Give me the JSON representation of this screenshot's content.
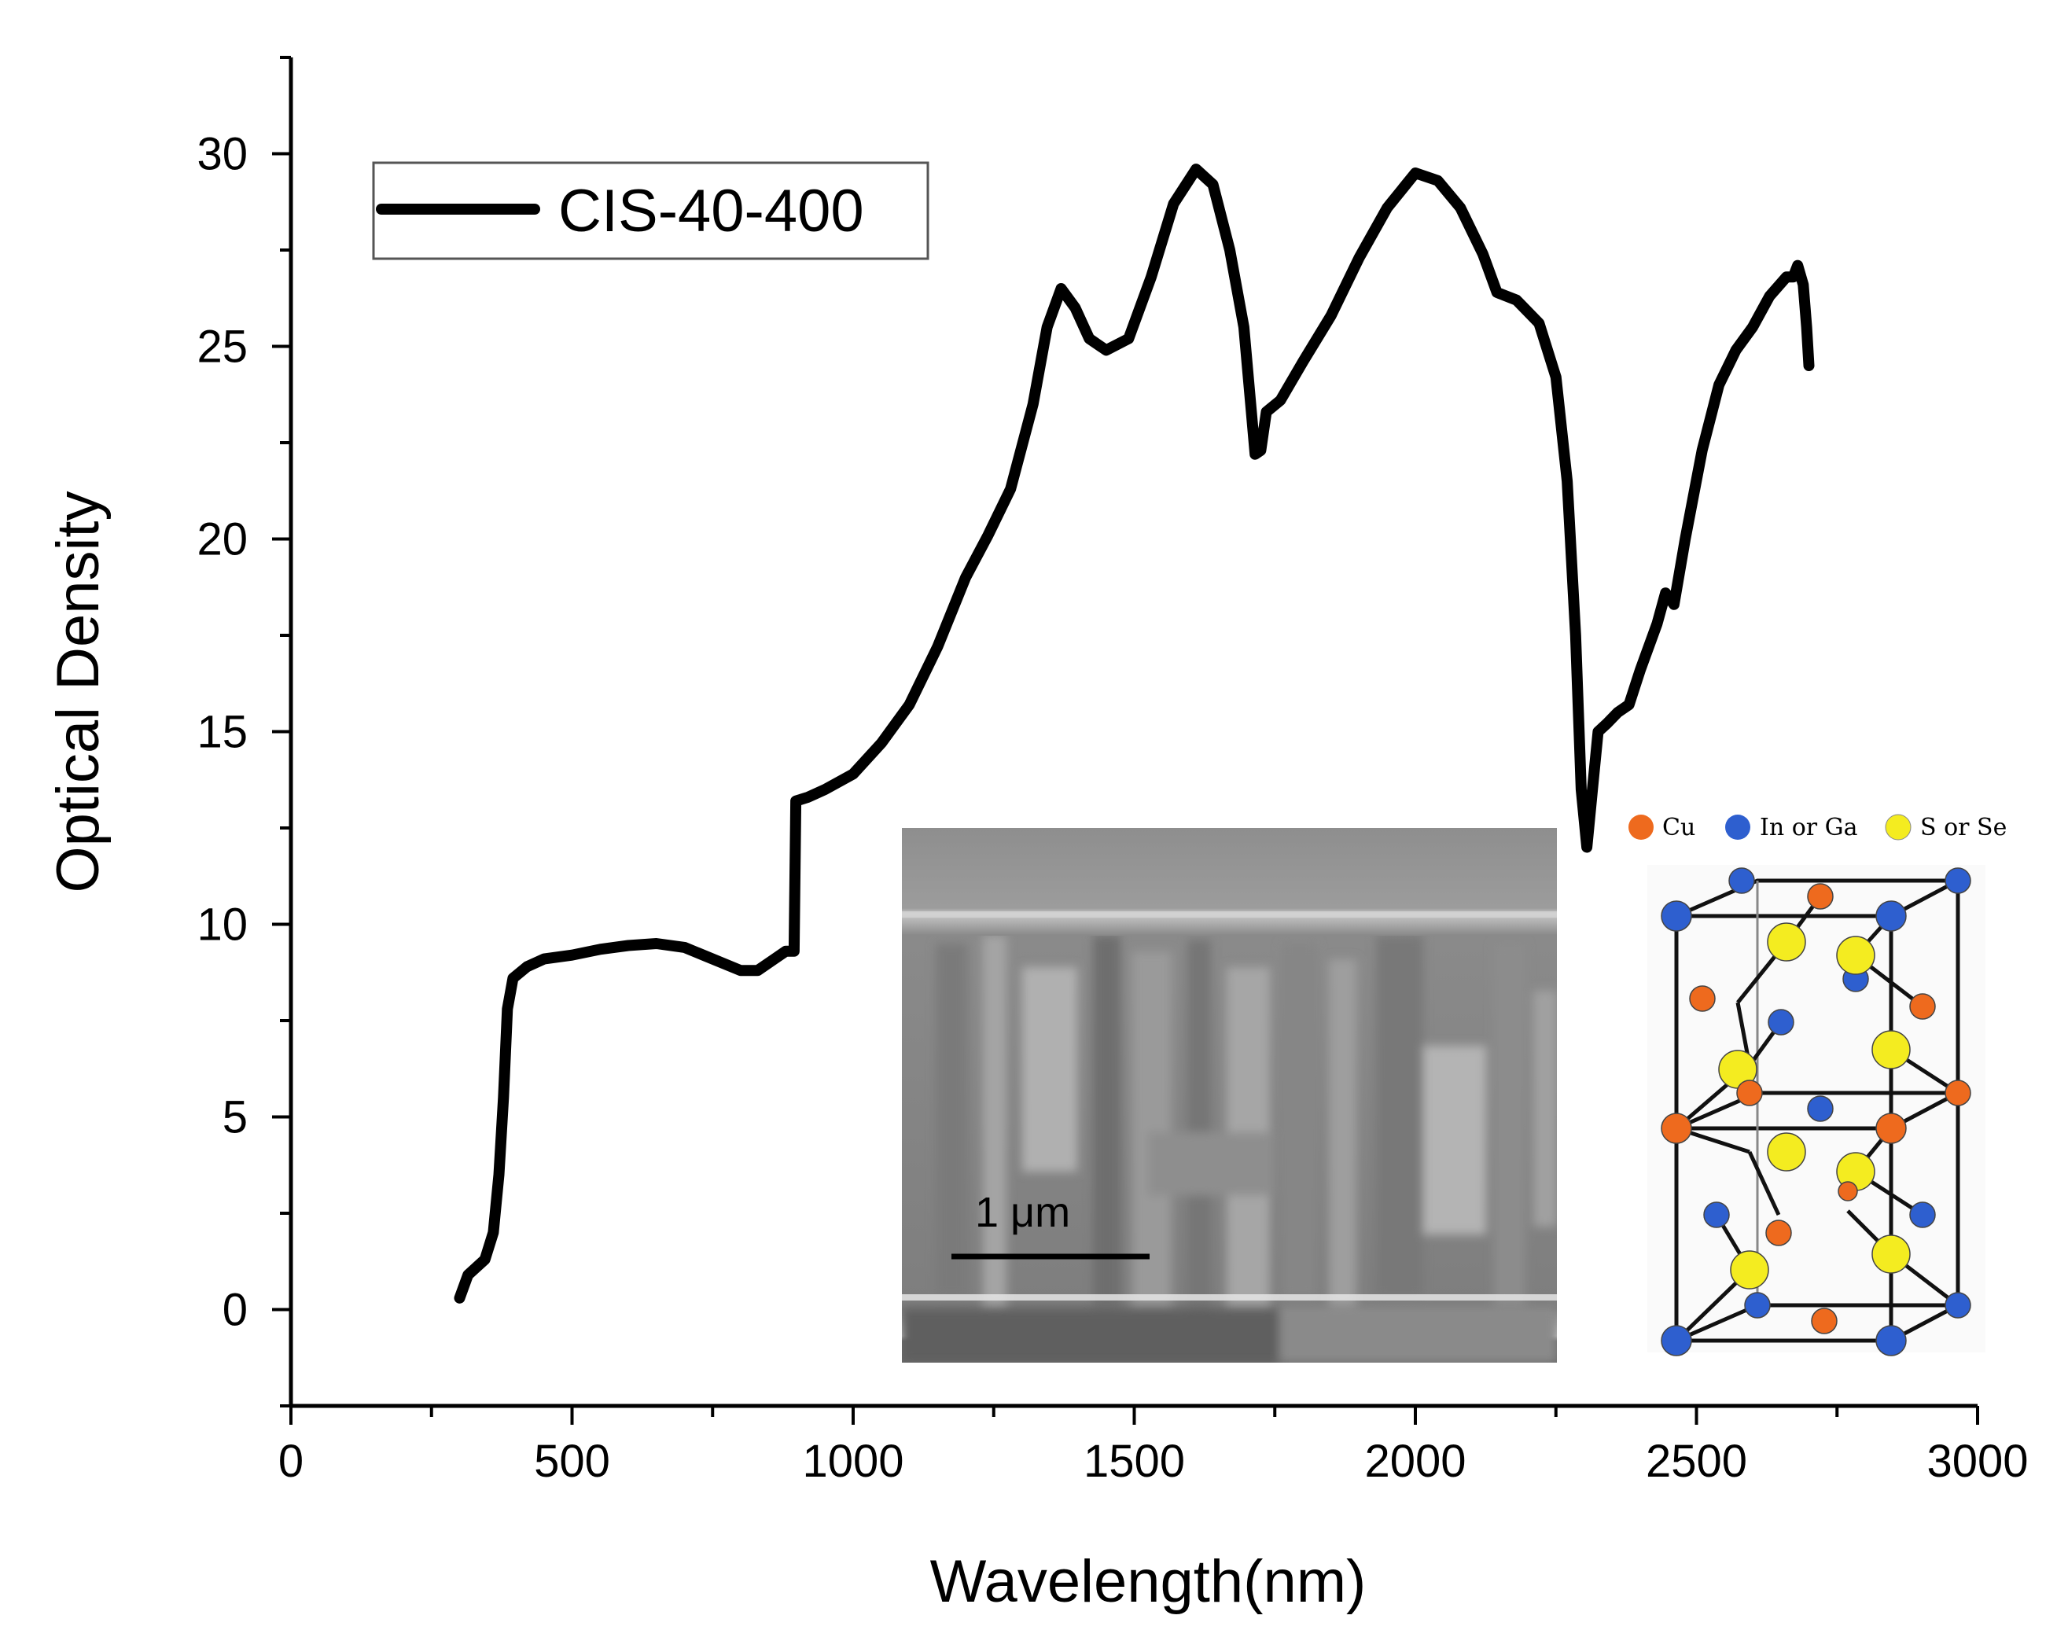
{
  "chart_data": {
    "type": "line",
    "title": "",
    "xlabel": "Wavelength(nm)",
    "ylabel": "Optical Density",
    "xlim": [
      0,
      3000
    ],
    "ylim": [
      -2.5,
      32.5
    ],
    "xticks": [
      0,
      500,
      1000,
      1500,
      2000,
      2500,
      3000
    ],
    "xtick_labels": [
      "0",
      "500",
      "1000",
      "1500",
      "2000",
      "2500",
      "3000"
    ],
    "yticks": [
      0,
      5,
      10,
      15,
      20,
      25,
      30
    ],
    "ytick_labels": [
      "0",
      "5",
      "10",
      "15",
      "20",
      "25",
      "30"
    ],
    "grid": false,
    "legend": {
      "position": "top-left",
      "entries": [
        "CIS-40-400"
      ]
    },
    "series": [
      {
        "name": "CIS-40-400",
        "color": "#000000",
        "points": [
          [
            300,
            0.3
          ],
          [
            315,
            0.9
          ],
          [
            330,
            1.1
          ],
          [
            345,
            1.3
          ],
          [
            360,
            2.0
          ],
          [
            370,
            3.5
          ],
          [
            378,
            5.5
          ],
          [
            385,
            7.8
          ],
          [
            395,
            8.6
          ],
          [
            420,
            8.9
          ],
          [
            450,
            9.1
          ],
          [
            500,
            9.2
          ],
          [
            550,
            9.35
          ],
          [
            600,
            9.45
          ],
          [
            650,
            9.5
          ],
          [
            700,
            9.4
          ],
          [
            750,
            9.1
          ],
          [
            800,
            8.8
          ],
          [
            830,
            8.8
          ],
          [
            860,
            9.1
          ],
          [
            880,
            9.3
          ],
          [
            895,
            9.3
          ],
          [
            898,
            13.2
          ],
          [
            920,
            13.3
          ],
          [
            950,
            13.5
          ],
          [
            1000,
            13.9
          ],
          [
            1050,
            14.7
          ],
          [
            1100,
            15.7
          ],
          [
            1150,
            17.2
          ],
          [
            1200,
            19.0
          ],
          [
            1240,
            20.1
          ],
          [
            1280,
            21.3
          ],
          [
            1320,
            23.5
          ],
          [
            1345,
            25.5
          ],
          [
            1370,
            26.5
          ],
          [
            1395,
            26.0
          ],
          [
            1420,
            25.2
          ],
          [
            1450,
            24.9
          ],
          [
            1490,
            25.2
          ],
          [
            1530,
            26.8
          ],
          [
            1570,
            28.7
          ],
          [
            1610,
            29.6
          ],
          [
            1640,
            29.2
          ],
          [
            1670,
            27.5
          ],
          [
            1695,
            25.5
          ],
          [
            1715,
            22.2
          ],
          [
            1725,
            22.3
          ],
          [
            1735,
            23.3
          ],
          [
            1760,
            23.6
          ],
          [
            1800,
            24.6
          ],
          [
            1850,
            25.8
          ],
          [
            1900,
            27.3
          ],
          [
            1950,
            28.6
          ],
          [
            2000,
            29.5
          ],
          [
            2040,
            29.3
          ],
          [
            2080,
            28.6
          ],
          [
            2120,
            27.4
          ],
          [
            2145,
            26.4
          ],
          [
            2180,
            26.2
          ],
          [
            2220,
            25.6
          ],
          [
            2250,
            24.2
          ],
          [
            2270,
            21.5
          ],
          [
            2285,
            17.5
          ],
          [
            2295,
            13.5
          ],
          [
            2305,
            12.0
          ],
          [
            2315,
            13.5
          ],
          [
            2325,
            15.0
          ],
          [
            2340,
            15.2
          ],
          [
            2360,
            15.5
          ],
          [
            2380,
            15.7
          ],
          [
            2400,
            16.6
          ],
          [
            2430,
            17.8
          ],
          [
            2445,
            18.6
          ],
          [
            2460,
            18.3
          ],
          [
            2480,
            20.0
          ],
          [
            2510,
            22.3
          ],
          [
            2540,
            24.0
          ],
          [
            2570,
            24.9
          ],
          [
            2600,
            25.5
          ],
          [
            2630,
            26.3
          ],
          [
            2660,
            26.8
          ],
          [
            2672,
            26.8
          ],
          [
            2680,
            27.1
          ],
          [
            2690,
            26.6
          ],
          [
            2696,
            25.5
          ],
          [
            2700,
            24.5
          ]
        ]
      }
    ],
    "insets": {
      "sem_image": {
        "scale_bar_label": "1  μm"
      },
      "crystal_structure": {
        "legend": [
          {
            "label": "Cu",
            "color": "#ee6a1e"
          },
          {
            "label": "In or Ga",
            "color": "#2e5fcf"
          },
          {
            "label": "S or Se",
            "color": "#f4ec20"
          }
        ]
      }
    }
  }
}
